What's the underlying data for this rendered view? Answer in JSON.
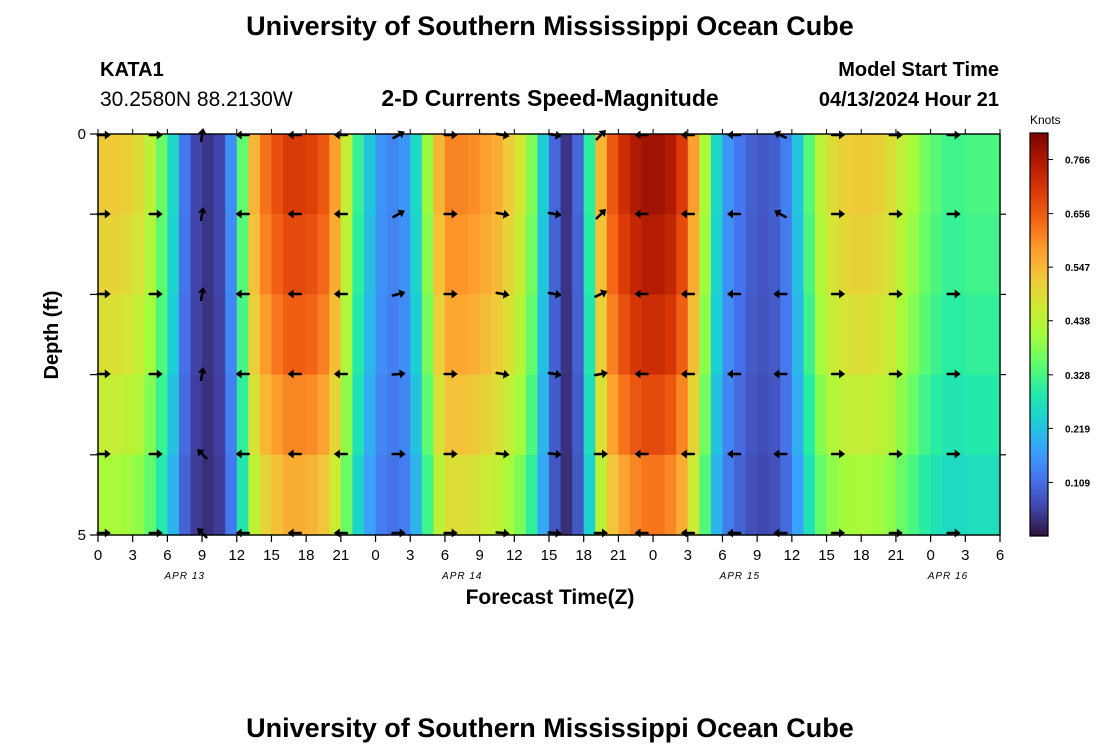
{
  "header": {
    "title": "University of Southern Mississippi Ocean Cube",
    "station": "KATA1",
    "coords": "30.2580N  88.2130W",
    "subtitle": "2-D Currents Speed-Magnitude",
    "model_label": "Model Start Time",
    "model_time": "04/13/2024 Hour 21",
    "footer_title": "University of Southern Mississippi Ocean Cube"
  },
  "chart_data": {
    "type": "heatmap",
    "title": "2-D Currents Speed-Magnitude",
    "xlabel": "Forecast Time(Z)",
    "ylabel": "Depth (ft)",
    "x_ticks": [
      "0",
      "3",
      "6",
      "9",
      "12",
      "15",
      "18",
      "21",
      "0",
      "3",
      "6",
      "9",
      "12",
      "15",
      "18",
      "21",
      "0",
      "3",
      "6",
      "9",
      "12",
      "15",
      "18",
      "21",
      "0",
      "3",
      "6"
    ],
    "date_labels": [
      {
        "label": "APR 13",
        "tick_index": 2.5
      },
      {
        "label": "APR 14",
        "tick_index": 10.5
      },
      {
        "label": "APR 15",
        "tick_index": 18.5
      },
      {
        "label": "APR 16",
        "tick_index": 24.5
      }
    ],
    "y_ticks": [
      "0",
      "5"
    ],
    "ylim": [
      0,
      5
    ],
    "xlim_hours": [
      0,
      78
    ],
    "colorbar": {
      "unit": "Knots",
      "min": 0.0,
      "max": 0.82,
      "ticks": [
        "0.109",
        "0.219",
        "0.328",
        "0.438",
        "0.547",
        "0.656",
        "0.766"
      ],
      "tick_values": [
        0.109,
        0.219,
        0.328,
        0.438,
        0.547,
        0.656,
        0.766
      ],
      "stops": [
        "#30123b",
        "#4145ab",
        "#4675ed",
        "#39a2fc",
        "#1bcfd4",
        "#24eca6",
        "#61fc6c",
        "#a4fc3b",
        "#d1e834",
        "#f3c63a",
        "#fe9b2d",
        "#f36315",
        "#d93806",
        "#b11901",
        "#7a0402"
      ]
    },
    "speed_profile": {
      "hours": [
        0,
        1,
        2,
        3,
        4,
        5,
        6,
        7,
        8,
        9,
        10,
        11,
        12,
        13,
        14,
        15,
        16,
        17,
        18,
        19,
        20,
        21,
        22,
        23,
        24,
        25,
        26,
        27,
        28,
        29,
        30,
        31,
        32,
        33,
        34,
        35,
        36,
        37,
        38,
        39,
        40,
        41,
        42,
        43,
        44,
        45,
        46,
        47,
        48,
        49,
        50,
        51,
        52,
        53,
        54,
        55,
        56,
        57,
        58,
        59,
        60,
        61,
        62,
        63,
        64,
        65,
        66,
        67,
        68,
        69,
        70,
        71,
        72,
        73,
        74,
        75,
        76,
        77
      ],
      "surface_knots": [
        0.52,
        0.52,
        0.51,
        0.49,
        0.44,
        0.36,
        0.25,
        0.12,
        0.06,
        0.04,
        0.06,
        0.15,
        0.35,
        0.55,
        0.63,
        0.67,
        0.7,
        0.7,
        0.69,
        0.66,
        0.58,
        0.45,
        0.31,
        0.22,
        0.16,
        0.14,
        0.16,
        0.25,
        0.4,
        0.55,
        0.61,
        0.61,
        0.6,
        0.58,
        0.56,
        0.52,
        0.47,
        0.38,
        0.23,
        0.1,
        0.04,
        0.1,
        0.3,
        0.55,
        0.66,
        0.72,
        0.76,
        0.78,
        0.78,
        0.76,
        0.7,
        0.58,
        0.42,
        0.25,
        0.16,
        0.12,
        0.09,
        0.08,
        0.09,
        0.13,
        0.22,
        0.34,
        0.44,
        0.49,
        0.51,
        0.52,
        0.52,
        0.51,
        0.49,
        0.45,
        0.41,
        0.37,
        0.34,
        0.32,
        0.32,
        0.33,
        0.33,
        0.33
      ],
      "depth_factor": [
        1.0,
        0.97,
        0.93,
        0.87,
        0.8
      ]
    },
    "vector_columns": [
      {
        "hour": 0.5,
        "dir": [
          0,
          0,
          0,
          0,
          0
        ]
      },
      {
        "hour": 5,
        "dir": [
          0,
          0,
          0,
          0,
          0
        ]
      },
      {
        "hour": 9,
        "dir": [
          -80,
          -80,
          -80,
          -80,
          -135
        ]
      },
      {
        "hour": 12.5,
        "dir": [
          180,
          180,
          180,
          180,
          180
        ]
      },
      {
        "hour": 17,
        "dir": [
          180,
          180,
          180,
          180,
          180
        ]
      },
      {
        "hour": 21,
        "dir": [
          180,
          180,
          180,
          180,
          180
        ]
      },
      {
        "hour": 26,
        "dir": [
          -30,
          -30,
          -15,
          -5,
          0
        ]
      },
      {
        "hour": 30.5,
        "dir": [
          0,
          0,
          0,
          0,
          0
        ]
      },
      {
        "hour": 35,
        "dir": [
          10,
          10,
          10,
          10,
          5
        ]
      },
      {
        "hour": 39.5,
        "dir": [
          10,
          10,
          10,
          10,
          5
        ]
      },
      {
        "hour": 43.5,
        "dir": [
          -45,
          -45,
          -25,
          -10,
          0
        ]
      },
      {
        "hour": 47,
        "dir": [
          180,
          180,
          180,
          180,
          180
        ]
      },
      {
        "hour": 51,
        "dir": [
          180,
          180,
          180,
          180,
          180
        ]
      },
      {
        "hour": 55,
        "dir": [
          180,
          180,
          180,
          180,
          180
        ]
      },
      {
        "hour": 59,
        "dir": [
          -155,
          -150,
          180,
          180,
          180
        ]
      },
      {
        "hour": 64,
        "dir": [
          0,
          0,
          0,
          0,
          0
        ]
      },
      {
        "hour": 69,
        "dir": [
          0,
          0,
          0,
          0,
          0
        ]
      },
      {
        "hour": 74,
        "dir": [
          0,
          0,
          0,
          0,
          0
        ]
      }
    ]
  }
}
